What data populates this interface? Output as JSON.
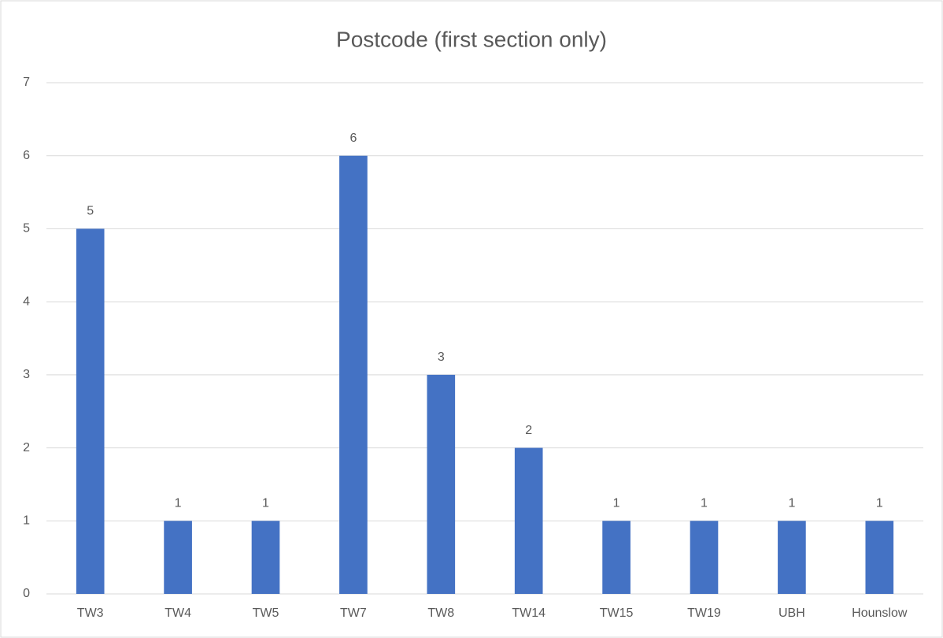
{
  "chart_data": {
    "type": "bar",
    "title": "Postcode (first section only)",
    "categories": [
      "TW3",
      "TW4",
      "TW5",
      "TW7",
      "TW8",
      "TW14",
      "TW15",
      "TW19",
      "UBH",
      "Hounslow"
    ],
    "values": [
      5,
      1,
      1,
      6,
      3,
      2,
      1,
      1,
      1,
      1
    ],
    "color": "#4472c4",
    "ylim": [
      0,
      7
    ],
    "yticks": [
      0,
      1,
      2,
      3,
      4,
      5,
      6,
      7
    ],
    "grid": true,
    "data_labels": true
  }
}
